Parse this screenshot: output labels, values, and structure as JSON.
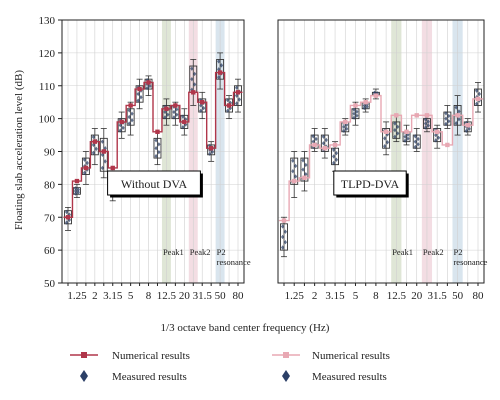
{
  "chart_data": [
    {
      "type": "box+line",
      "panel_label": "Without DVA",
      "ylabel": "Floating slab acceleration level (dB)",
      "xlabel": "1/3 octave band center frequency (Hz)",
      "ylim": [
        50,
        130
      ],
      "yticks": [
        50,
        60,
        70,
        80,
        90,
        100,
        110,
        120,
        130
      ],
      "bands": [
        "1",
        "1.25",
        "1.6",
        "2",
        "2.5",
        "3.15",
        "4",
        "5",
        "6.3",
        "8",
        "10",
        "12.5",
        "16",
        "20",
        "25",
        "31.5",
        "40",
        "50",
        "63",
        "80"
      ],
      "tick_labels": [
        "",
        "1.25",
        "",
        "2",
        "",
        "3.15",
        "",
        "5",
        "",
        "8",
        "",
        "12.5",
        "",
        "20",
        "",
        "31.5",
        "",
        "50",
        "",
        "80"
      ],
      "line_color": "#b0364a",
      "numerical": [
        70,
        81,
        85,
        93,
        90,
        85,
        99,
        104,
        109,
        111,
        96,
        103,
        104,
        99,
        108,
        105,
        91,
        114,
        104,
        108
      ],
      "measured_boxes": [
        {
          "min": 66,
          "q1": 68,
          "q3": 72,
          "max": 73
        },
        {
          "min": 76,
          "q1": 77,
          "q3": 79,
          "max": 80
        },
        {
          "min": 80,
          "q1": 83,
          "q3": 88,
          "max": 90
        },
        {
          "min": 86,
          "q1": 89,
          "q3": 95,
          "max": 97
        },
        {
          "min": 82,
          "q1": 84,
          "q3": 94,
          "max": 97
        },
        {
          "min": 75,
          "q1": 77,
          "q3": 82,
          "max": 84
        },
        {
          "min": 94,
          "q1": 96,
          "q3": 100,
          "max": 102
        },
        {
          "min": 95,
          "q1": 98,
          "q3": 103,
          "max": 105
        },
        {
          "min": 103,
          "q1": 105,
          "q3": 110,
          "max": 112
        },
        {
          "min": 107,
          "q1": 109,
          "q3": 112,
          "max": 113
        },
        {
          "min": 86,
          "q1": 88,
          "q3": 94,
          "max": 96
        },
        {
          "min": 98,
          "q1": 100,
          "q3": 104,
          "max": 106
        },
        {
          "min": 98,
          "q1": 100,
          "q3": 104,
          "max": 105
        },
        {
          "min": 95,
          "q1": 97,
          "q3": 101,
          "max": 103
        },
        {
          "min": 104,
          "q1": 108,
          "q3": 116,
          "max": 118
        },
        {
          "min": 100,
          "q1": 102,
          "q3": 106,
          "max": 108
        },
        {
          "min": 87,
          "q1": 89,
          "q3": 92,
          "max": 93
        },
        {
          "min": 109,
          "q1": 112,
          "q3": 118,
          "max": 120
        },
        {
          "min": 100,
          "q1": 102,
          "q3": 106,
          "max": 107
        },
        {
          "min": 102,
          "q1": 104,
          "q3": 110,
          "max": 112
        }
      ],
      "shaded_regions": [
        {
          "band": "12.5",
          "color": "#dfe6d6",
          "label": "Peak1"
        },
        {
          "band": "25",
          "color": "#f3dde3",
          "label": "Peak2"
        },
        {
          "band": "50",
          "color": "#d9e5ee",
          "label": "P2\nresonance"
        }
      ]
    },
    {
      "type": "box+line",
      "panel_label": "TLPD-DVA",
      "ylim": [
        50,
        130
      ],
      "bands": [
        "1",
        "1.25",
        "1.6",
        "2",
        "2.5",
        "3.15",
        "4",
        "5",
        "6.3",
        "8",
        "10",
        "12.5",
        "16",
        "20",
        "25",
        "31.5",
        "40",
        "50",
        "63",
        "80"
      ],
      "tick_labels": [
        "",
        "1.25",
        "",
        "2",
        "",
        "3.15",
        "",
        "5",
        "",
        "8",
        "",
        "12.5",
        "",
        "20",
        "",
        "31.5",
        "",
        "50",
        "",
        "80"
      ],
      "line_color": "#e8a8b3",
      "numerical": [
        69,
        81,
        82,
        92,
        91,
        92,
        99,
        104,
        105,
        107,
        96,
        101,
        96,
        101,
        101,
        96,
        92,
        101,
        98,
        106
      ],
      "measured_boxes": [
        {
          "min": 58,
          "q1": 60,
          "q3": 68,
          "max": 70
        },
        {
          "min": 76,
          "q1": 80,
          "q3": 88,
          "max": 90
        },
        {
          "min": 78,
          "q1": 81,
          "q3": 88,
          "max": 90
        },
        {
          "min": 90,
          "q1": 91,
          "q3": 95,
          "max": 97
        },
        {
          "min": 88,
          "q1": 90,
          "q3": 95,
          "max": 97
        },
        {
          "min": 84,
          "q1": 86,
          "q3": 91,
          "max": 93
        },
        {
          "min": 95,
          "q1": 96,
          "q3": 99,
          "max": 100
        },
        {
          "min": 98,
          "q1": 100,
          "q3": 103,
          "max": 105
        },
        {
          "min": 102,
          "q1": 103,
          "q3": 105,
          "max": 106
        },
        {
          "min": 106,
          "q1": 107,
          "q3": 108,
          "max": 109
        },
        {
          "min": 89,
          "q1": 91,
          "q3": 97,
          "max": 99
        },
        {
          "min": 93,
          "q1": 94,
          "q3": 99,
          "max": 101
        },
        {
          "min": 92,
          "q1": 93,
          "q3": 96,
          "max": 98
        },
        {
          "min": 90,
          "q1": 91,
          "q3": 95,
          "max": 97
        },
        {
          "min": 96,
          "q1": 97,
          "q3": 100,
          "max": 101
        },
        {
          "min": 91,
          "q1": 93,
          "q3": 97,
          "max": 98
        },
        {
          "min": 97,
          "q1": 98,
          "q3": 102,
          "max": 104
        },
        {
          "min": 95,
          "q1": 98,
          "q3": 104,
          "max": 107
        },
        {
          "min": 95,
          "q1": 96,
          "q3": 99,
          "max": 100
        },
        {
          "min": 102,
          "q1": 104,
          "q3": 109,
          "max": 111
        }
      ],
      "shaded_regions": [
        {
          "band": "12.5",
          "color": "#dfe6d6",
          "label": "Peak1"
        },
        {
          "band": "25",
          "color": "#f3dde3",
          "label": "Peak2"
        },
        {
          "band": "50",
          "color": "#d9e5ee",
          "label": "P2\nresonance"
        }
      ]
    }
  ],
  "legend": {
    "left_numerical": "Numerical results",
    "left_measured": "Measured results",
    "right_numerical": "Numerical results",
    "right_measured": "Measured results",
    "left_line_color": "#b0364a",
    "right_line_color": "#e8a8b3",
    "marker_color": "#2b3f66"
  }
}
